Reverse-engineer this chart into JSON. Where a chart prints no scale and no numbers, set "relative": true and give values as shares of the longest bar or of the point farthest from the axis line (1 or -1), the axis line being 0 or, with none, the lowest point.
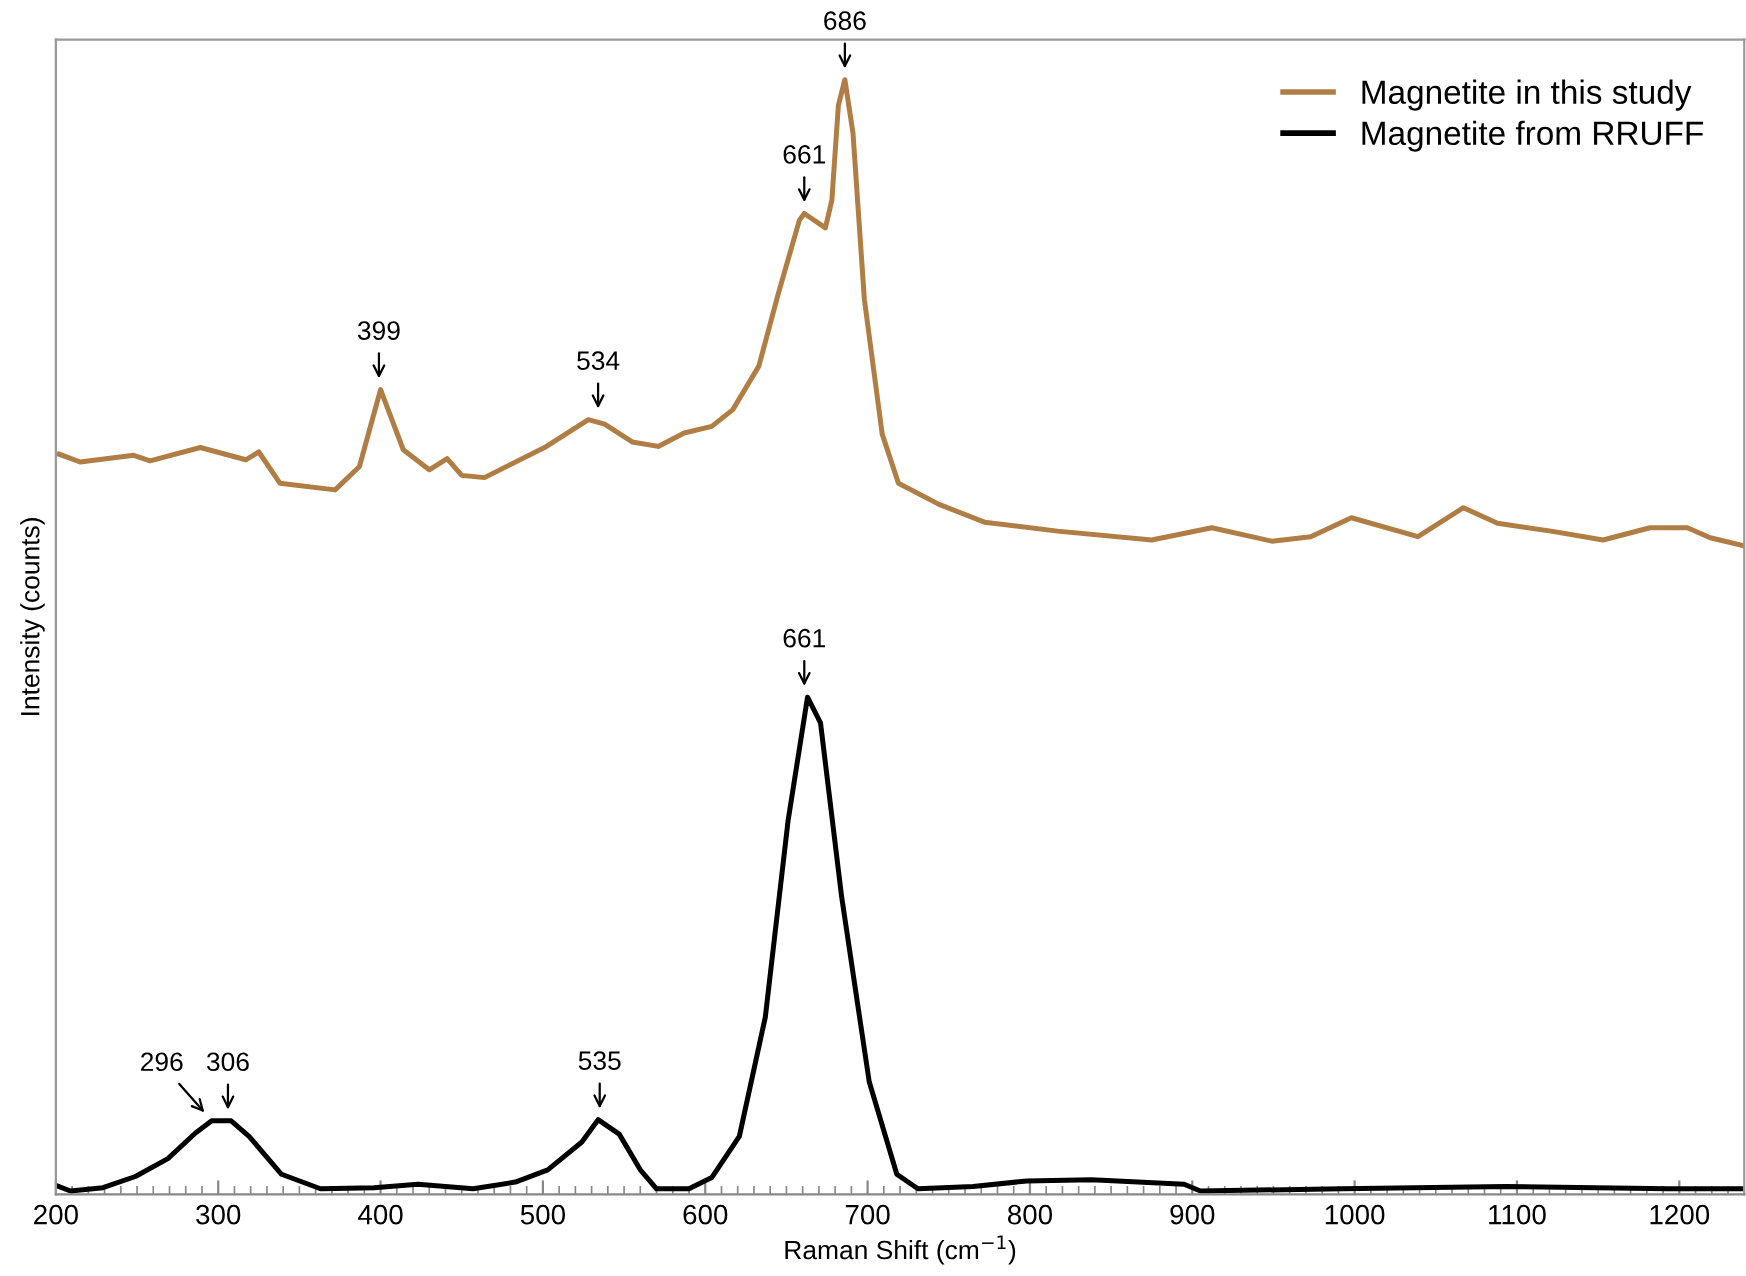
{
  "chart_data": {
    "type": "line",
    "relative": true,
    "xlabel": "Raman Shift (cm$^{−1}$)",
    "ylabel": "Intensity (counts)",
    "xlim": [
      200,
      1240
    ],
    "xticks": [
      200,
      300,
      400,
      500,
      600,
      700,
      800,
      900,
      1000,
      1100,
      1200,
      {
        "value": 210,
        "label": null
      },
      {
        "value": 220,
        "label": null
      },
      {
        "value": 230,
        "label": null
      },
      {
        "value": 240,
        "label": null
      },
      {
        "value": 250,
        "label": null
      },
      {
        "value": 260,
        "label": null
      },
      {
        "value": 270,
        "label": null
      },
      {
        "value": 280,
        "label": null
      },
      {
        "value": 290,
        "label": null
      },
      {
        "value": 310,
        "label": null
      },
      {
        "value": 320,
        "label": null
      },
      {
        "value": 330,
        "label": null
      },
      {
        "value": 340,
        "label": null
      },
      {
        "value": 350,
        "label": null
      },
      {
        "value": 360,
        "label": null
      },
      {
        "value": 370,
        "label": null
      },
      {
        "value": 380,
        "label": null
      },
      {
        "value": 390,
        "label": null
      },
      {
        "value": 410,
        "label": null
      },
      {
        "value": 420,
        "label": null
      },
      {
        "value": 430,
        "label": null
      },
      {
        "value": 440,
        "label": null
      },
      {
        "value": 450,
        "label": null
      },
      {
        "value": 460,
        "label": null
      },
      {
        "value": 470,
        "label": null
      },
      {
        "value": 480,
        "label": null
      },
      {
        "value": 490,
        "label": null
      },
      {
        "value": 510,
        "label": null
      },
      {
        "value": 520,
        "label": null
      },
      {
        "value": 530,
        "label": null
      },
      {
        "value": 540,
        "label": null
      },
      {
        "value": 550,
        "label": null
      },
      {
        "value": 560,
        "label": null
      },
      {
        "value": 570,
        "label": null
      },
      {
        "value": 580,
        "label": null
      },
      {
        "value": 590,
        "label": null
      },
      {
        "value": 610,
        "label": null
      },
      {
        "value": 620,
        "label": null
      },
      {
        "value": 630,
        "label": null
      },
      {
        "value": 640,
        "label": null
      },
      {
        "value": 650,
        "label": null
      },
      {
        "value": 660,
        "label": null
      },
      {
        "value": 670,
        "label": null
      },
      {
        "value": 680,
        "label": null
      },
      {
        "value": 690,
        "label": null
      },
      {
        "value": 710,
        "label": null
      },
      {
        "value": 720,
        "label": null
      },
      {
        "value": 730,
        "label": null
      },
      {
        "value": 740,
        "label": null
      },
      {
        "value": 750,
        "label": null
      },
      {
        "value": 760,
        "label": null
      },
      {
        "value": 770,
        "label": null
      },
      {
        "value": 780,
        "label": null
      },
      {
        "value": 790,
        "label": null
      },
      {
        "value": 810,
        "label": null
      },
      {
        "value": 820,
        "label": null
      },
      {
        "value": 830,
        "label": null
      },
      {
        "value": 840,
        "label": null
      },
      {
        "value": 850,
        "label": null
      },
      {
        "value": 860,
        "label": null
      },
      {
        "value": 870,
        "label": null
      },
      {
        "value": 880,
        "label": null
      },
      {
        "value": 890,
        "label": null
      },
      {
        "value": 910,
        "label": null
      },
      {
        "value": 920,
        "label": null
      },
      {
        "value": 930,
        "label": null
      },
      {
        "value": 940,
        "label": null
      },
      {
        "value": 950,
        "label": null
      },
      {
        "value": 960,
        "label": null
      },
      {
        "value": 970,
        "label": null
      },
      {
        "value": 980,
        "label": null
      },
      {
        "value": 990,
        "label": null
      },
      {
        "value": 1010,
        "label": null
      },
      {
        "value": 1020,
        "label": null
      },
      {
        "value": 1030,
        "label": null
      },
      {
        "value": 1040,
        "label": null
      },
      {
        "value": 1050,
        "label": null
      },
      {
        "value": 1060,
        "label": null
      },
      {
        "value": 1070,
        "label": null
      },
      {
        "value": 1080,
        "label": null
      },
      {
        "value": 1090,
        "label": null
      },
      {
        "value": 1110,
        "label": null
      },
      {
        "value": 1120,
        "label": null
      },
      {
        "value": 1130,
        "label": null
      },
      {
        "value": 1140,
        "label": null
      },
      {
        "value": 1150,
        "label": null
      },
      {
        "value": 1160,
        "label": null
      },
      {
        "value": 1170,
        "label": null
      },
      {
        "value": 1180,
        "label": null
      },
      {
        "value": 1190,
        "label": null
      },
      {
        "value": 1210,
        "label": null
      },
      {
        "value": 1220,
        "label": null
      },
      {
        "value": 1230,
        "label": null
      }
    ],
    "tick_labels": "x",
    "legend": "top right",
    "grid": false,
    "series": [
      {
        "name": "Magnetite in this study",
        "color": "#b07d45",
        "x": [
          202,
          215,
          248,
          258,
          289,
          317,
          325,
          338,
          372,
          387,
          400,
          414,
          430,
          441,
          450,
          464,
          501,
          528,
          538,
          555,
          571,
          587,
          604,
          617,
          633,
          645,
          658,
          661,
          674,
          678,
          682,
          686,
          691,
          698,
          709,
          719,
          744,
          772,
          817,
          875,
          912,
          949,
          973,
          998,
          1039,
          1067,
          1088,
          1121,
          1153,
          1182,
          1205,
          1219,
          1239
        ],
        "values": [
          0.664,
          0.657,
          0.663,
          0.658,
          0.67,
          0.659,
          0.666,
          0.638,
          0.632,
          0.653,
          0.722,
          0.668,
          0.65,
          0.66,
          0.645,
          0.643,
          0.67,
          0.695,
          0.691,
          0.675,
          0.671,
          0.683,
          0.689,
          0.704,
          0.743,
          0.808,
          0.874,
          0.88,
          0.867,
          0.892,
          0.977,
          1.0,
          0.952,
          0.803,
          0.682,
          0.638,
          0.619,
          0.603,
          0.595,
          0.587,
          0.598,
          0.586,
          0.59,
          0.607,
          0.59,
          0.616,
          0.602,
          0.595,
          0.587,
          0.598,
          0.598,
          0.589,
          0.582
        ]
      },
      {
        "name": "Magnetite from RRUFF",
        "color": "#000000",
        "x": [
          200,
          209,
          229,
          249,
          269,
          286,
          296,
          308,
          319,
          339,
          363,
          396,
          423,
          457,
          483,
          503,
          524,
          534,
          547,
          560,
          570,
          590,
          604,
          621,
          637,
          651,
          663,
          671,
          684,
          701,
          718,
          731,
          765,
          798,
          838,
          895,
          905,
          992,
          1093,
          1193,
          1238
        ],
        "values": [
          0.008,
          0.003,
          0.006,
          0.016,
          0.032,
          0.055,
          0.066,
          0.066,
          0.052,
          0.018,
          0.005,
          0.006,
          0.009,
          0.005,
          0.011,
          0.022,
          0.047,
          0.067,
          0.054,
          0.022,
          0.005,
          0.005,
          0.015,
          0.052,
          0.159,
          0.335,
          0.446,
          0.423,
          0.267,
          0.101,
          0.018,
          0.005,
          0.007,
          0.012,
          0.013,
          0.009,
          0.003,
          0.005,
          0.007,
          0.005,
          0.005
        ]
      }
    ],
    "annotations": [
      {
        "text": "399",
        "x": 399,
        "y": 0.722
      },
      {
        "text": "534",
        "x": 534,
        "y": 0.695
      },
      {
        "text": "661",
        "x": 661,
        "y": 0.88
      },
      {
        "text": "686",
        "x": 686,
        "y": 1.0
      },
      {
        "text": "296",
        "x": 296,
        "y": 0.066
      },
      {
        "text": "306",
        "x": 306,
        "y": 0.066
      },
      {
        "text": "535",
        "x": 535,
        "y": 0.067
      },
      {
        "text": "661",
        "x": 661,
        "y": 0.446
      }
    ]
  }
}
